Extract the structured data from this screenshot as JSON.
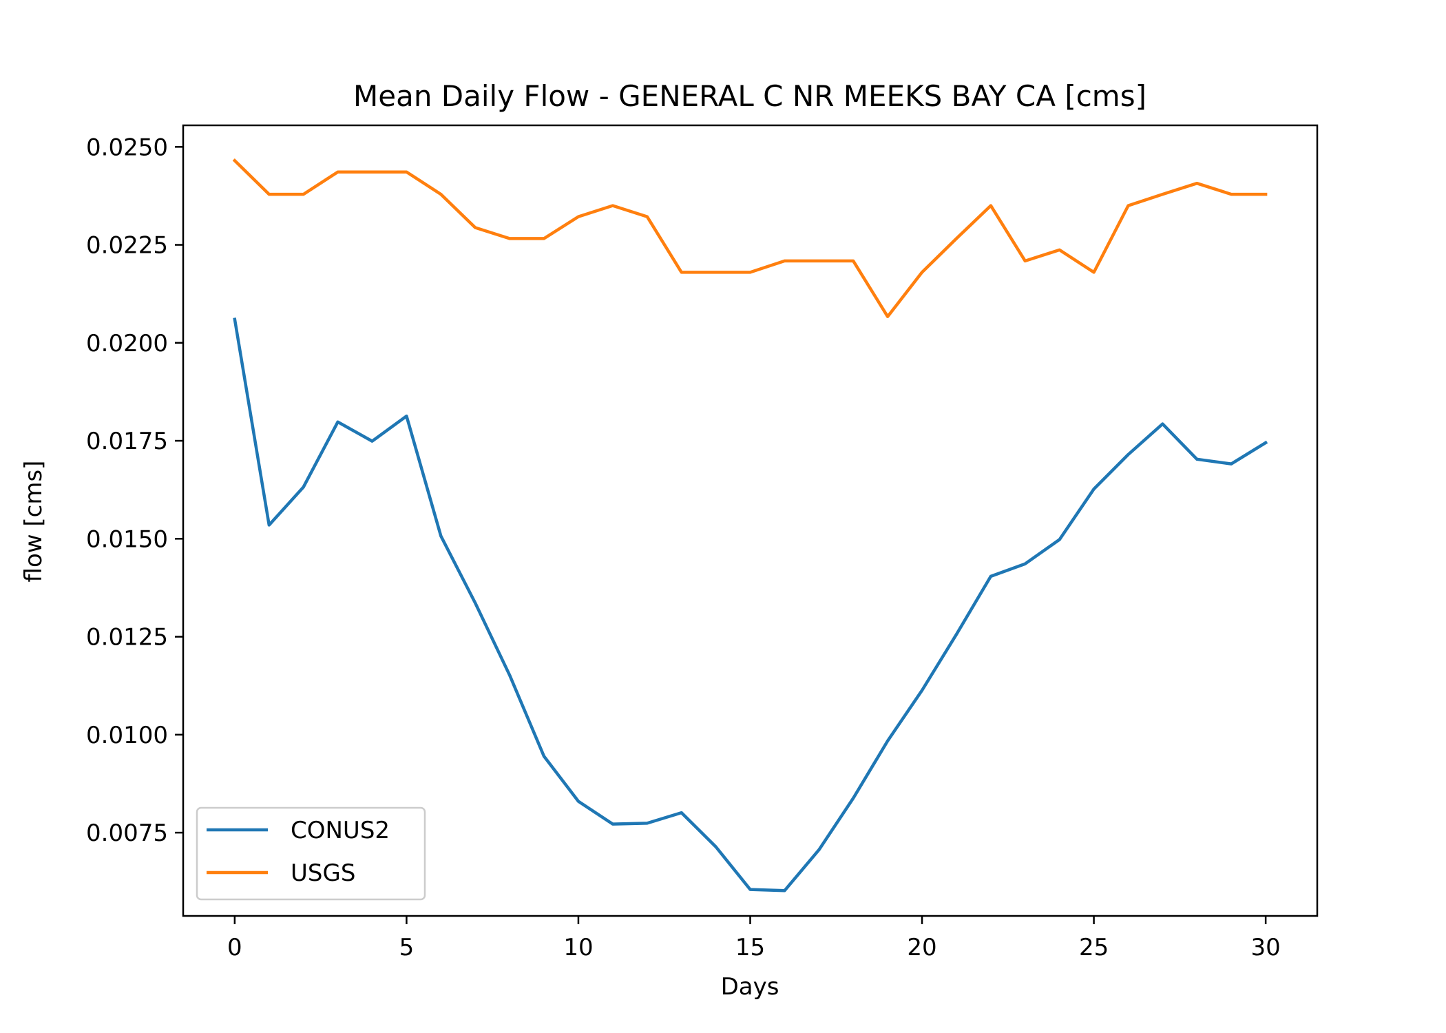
{
  "chart_data": {
    "type": "line",
    "title": "Mean Daily Flow - GENERAL C NR MEEKS BAY CA [cms]",
    "xlabel": "Days",
    "ylabel": "flow [cms]",
    "xlim": [
      -1.5,
      31.5
    ],
    "ylim": [
      0.005375,
      0.02555
    ],
    "xticks": [
      0,
      5,
      10,
      15,
      20,
      25,
      30
    ],
    "xtick_labels": [
      "0",
      "5",
      "10",
      "15",
      "20",
      "25",
      "30"
    ],
    "yticks": [
      0.0075,
      0.01,
      0.0125,
      0.015,
      0.0175,
      0.02,
      0.0225,
      0.025
    ],
    "ytick_labels": [
      "0.0075",
      "0.0100",
      "0.0125",
      "0.0150",
      "0.0175",
      "0.0200",
      "0.0225",
      "0.0250"
    ],
    "grid": false,
    "legend_position": "lower-left",
    "x": [
      0,
      1,
      2,
      3,
      4,
      5,
      6,
      7,
      8,
      9,
      10,
      11,
      12,
      13,
      14,
      15,
      16,
      17,
      18,
      19,
      20,
      21,
      22,
      23,
      24,
      25,
      26,
      27,
      28,
      29,
      30
    ],
    "series": [
      {
        "name": "CONUS2",
        "color": "#1f77b4",
        "values": [
          0.0206,
          0.01535,
          0.01632,
          0.01798,
          0.01749,
          0.01813,
          0.01507,
          0.01336,
          0.01152,
          0.00945,
          0.0083,
          0.00772,
          0.00774,
          0.00801,
          0.00714,
          0.00605,
          0.00602,
          0.00706,
          0.00838,
          0.00984,
          0.01113,
          0.01256,
          0.01404,
          0.01436,
          0.01498,
          0.01627,
          0.01715,
          0.01793,
          0.01703,
          0.01691,
          0.01745
        ]
      },
      {
        "name": "USGS",
        "color": "#ff7f0e",
        "values": [
          0.02465,
          0.02379,
          0.02379,
          0.02436,
          0.02436,
          0.02436,
          0.02379,
          0.02294,
          0.02266,
          0.02266,
          0.02322,
          0.0235,
          0.02322,
          0.0218,
          0.0218,
          0.0218,
          0.02209,
          0.02209,
          0.02209,
          0.02067,
          0.0218,
          0.02266,
          0.0235,
          0.02209,
          0.02237,
          0.0218,
          0.0235,
          0.02379,
          0.02407,
          0.02379,
          0.02379
        ]
      }
    ]
  }
}
